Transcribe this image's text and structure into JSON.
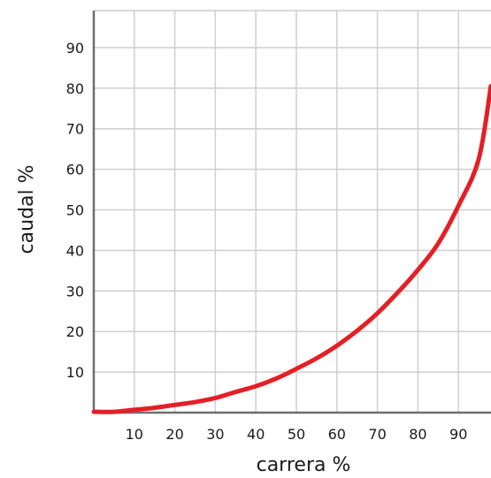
{
  "chart_data": {
    "type": "line",
    "xlabel": "carrera %",
    "ylabel": "caudal %",
    "xlim": [
      0,
      98
    ],
    "ylim": [
      0,
      100
    ],
    "grid": true,
    "x_ticks": [
      10,
      20,
      30,
      40,
      50,
      60,
      70,
      80,
      90
    ],
    "y_ticks": [
      10,
      20,
      30,
      40,
      50,
      60,
      70,
      80,
      90
    ],
    "series": [
      {
        "color": "#e41f26",
        "x": [
          0,
          5,
          10,
          15,
          20,
          25,
          30,
          35,
          40,
          45,
          50,
          55,
          60,
          65,
          70,
          75,
          80,
          85,
          90,
          95,
          98
        ],
        "y": [
          0.2,
          0.2,
          0.7,
          1.2,
          1.9,
          2.6,
          3.6,
          5.1,
          6.5,
          8.4,
          10.8,
          13.4,
          16.5,
          20.2,
          24.5,
          29.6,
          35.2,
          41.7,
          51.0,
          62.5,
          80.5
        ]
      }
    ]
  }
}
